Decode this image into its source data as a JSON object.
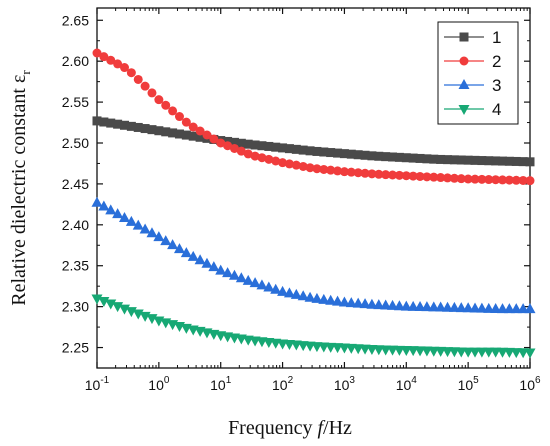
{
  "chart_data": {
    "type": "scatter",
    "xscale": "log",
    "xlim": [
      0.1,
      1000000
    ],
    "ylim": [
      2.225,
      2.665
    ],
    "xticks": [
      0.1,
      1,
      10,
      100,
      1000,
      10000,
      100000,
      1000000
    ],
    "xtick_labels": [
      {
        "base": "10",
        "exp": "-1"
      },
      {
        "base": "10",
        "exp": "0"
      },
      {
        "base": "10",
        "exp": "1"
      },
      {
        "base": "10",
        "exp": "2"
      },
      {
        "base": "10",
        "exp": "3"
      },
      {
        "base": "10",
        "exp": "4"
      },
      {
        "base": "10",
        "exp": "5"
      },
      {
        "base": "10",
        "exp": "6"
      }
    ],
    "yticks": [
      "2.25",
      "2.30",
      "2.35",
      "2.40",
      "2.45",
      "2.50",
      "2.55",
      "2.60",
      "2.65"
    ],
    "xlabel": {
      "pre": "Frequency ",
      "italic": "f",
      "post": "/Hz"
    },
    "ylabel": {
      "main": "Relative dielectric constant ε",
      "sub": "r"
    },
    "legend_position": "top-right",
    "grid": false,
    "x": [
      0.1,
      0.3162,
      1,
      3.162,
      10,
      31.62,
      100,
      316.2,
      1000,
      3162,
      10000,
      31620,
      100000,
      316200,
      1000000
    ],
    "series": [
      {
        "name": "1",
        "marker": "square",
        "color": "#4a4a4a",
        "values": [
          2.527,
          2.521,
          2.515,
          2.509,
          2.503,
          2.498,
          2.494,
          2.49,
          2.487,
          2.484,
          2.482,
          2.48,
          2.479,
          2.478,
          2.477
        ]
      },
      {
        "name": "2",
        "marker": "circle",
        "color": "#f03c3c",
        "values": [
          2.61,
          2.59,
          2.553,
          2.522,
          2.5,
          2.485,
          2.476,
          2.469,
          2.465,
          2.462,
          2.46,
          2.458,
          2.456,
          2.455,
          2.454
        ]
      },
      {
        "name": "3",
        "marker": "triangle-up",
        "color": "#2a6fd9",
        "values": [
          2.427,
          2.406,
          2.385,
          2.363,
          2.344,
          2.33,
          2.318,
          2.31,
          2.305,
          2.302,
          2.3,
          2.299,
          2.298,
          2.297,
          2.297
        ]
      },
      {
        "name": "4",
        "marker": "triangle-down",
        "color": "#17a874",
        "values": [
          2.31,
          2.296,
          2.283,
          2.273,
          2.265,
          2.259,
          2.255,
          2.252,
          2.25,
          2.248,
          2.247,
          2.246,
          2.245,
          2.245,
          2.244
        ]
      }
    ]
  }
}
